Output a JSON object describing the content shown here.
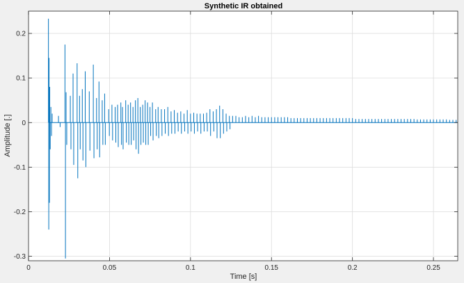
{
  "chart_data": {
    "type": "line",
    "title": "Synthetic IR obtained",
    "xlabel": "Time [s]",
    "ylabel": "Amplitude [.]",
    "xlim": [
      0,
      0.265
    ],
    "ylim": [
      -0.31,
      0.25
    ],
    "x_ticks": [
      0,
      0.05,
      0.1,
      0.15,
      0.2,
      0.25
    ],
    "x_tick_labels": [
      "0",
      "0.05",
      "0.1",
      "0.15",
      "0.2",
      "0.25"
    ],
    "y_ticks": [
      -0.3,
      -0.2,
      -0.1,
      0,
      0.1,
      0.2
    ],
    "y_tick_labels": [
      "-0.3",
      "-0.2",
      "-0.1",
      "0",
      "0.1",
      "0.2"
    ],
    "grid": true,
    "series": [
      {
        "color": "#0072bd",
        "impulses": [
          [
            0.0123,
            0.233
          ],
          [
            0.0125,
            -0.24
          ],
          [
            0.0127,
            0.145
          ],
          [
            0.0129,
            -0.18
          ],
          [
            0.0131,
            0.08
          ],
          [
            0.0134,
            -0.06
          ],
          [
            0.0138,
            0.035
          ],
          [
            0.0142,
            -0.03
          ],
          [
            0.0146,
            0.02
          ],
          [
            0.0185,
            0.015
          ],
          [
            0.0195,
            -0.01
          ],
          [
            0.0225,
            0.175
          ],
          [
            0.0228,
            -0.305
          ],
          [
            0.0232,
            0.068
          ],
          [
            0.0236,
            -0.05
          ],
          [
            0.0258,
            0.06
          ],
          [
            0.0262,
            -0.06
          ],
          [
            0.0275,
            0.11
          ],
          [
            0.0279,
            -0.095
          ],
          [
            0.03,
            0.133
          ],
          [
            0.0304,
            -0.125
          ],
          [
            0.0315,
            0.06
          ],
          [
            0.0319,
            -0.06
          ],
          [
            0.0332,
            0.075
          ],
          [
            0.0336,
            -0.085
          ],
          [
            0.035,
            0.115
          ],
          [
            0.0354,
            -0.1
          ],
          [
            0.0375,
            0.07
          ],
          [
            0.0379,
            -0.063
          ],
          [
            0.04,
            0.13
          ],
          [
            0.0404,
            -0.08
          ],
          [
            0.042,
            0.055
          ],
          [
            0.0424,
            -0.06
          ],
          [
            0.0435,
            0.092
          ],
          [
            0.0439,
            -0.078
          ],
          [
            0.0455,
            0.05
          ],
          [
            0.0459,
            -0.05
          ],
          [
            0.047,
            0.065
          ],
          [
            0.0474,
            -0.05
          ],
          [
            0.0495,
            0.03
          ],
          [
            0.0499,
            -0.03
          ],
          [
            0.0515,
            0.04
          ],
          [
            0.0519,
            -0.04
          ],
          [
            0.0535,
            0.035
          ],
          [
            0.0539,
            -0.045
          ],
          [
            0.055,
            0.04
          ],
          [
            0.0554,
            -0.055
          ],
          [
            0.057,
            0.045
          ],
          [
            0.0574,
            -0.05
          ],
          [
            0.058,
            0.035
          ],
          [
            0.0584,
            -0.06
          ],
          [
            0.06,
            0.05
          ],
          [
            0.0604,
            -0.045
          ],
          [
            0.0615,
            0.04
          ],
          [
            0.0619,
            -0.05
          ],
          [
            0.063,
            0.045
          ],
          [
            0.0634,
            -0.05
          ],
          [
            0.0645,
            0.035
          ],
          [
            0.0649,
            -0.04
          ],
          [
            0.066,
            0.05
          ],
          [
            0.0664,
            -0.06
          ],
          [
            0.0675,
            0.055
          ],
          [
            0.0679,
            -0.07
          ],
          [
            0.069,
            0.035
          ],
          [
            0.0694,
            -0.05
          ],
          [
            0.0705,
            0.04
          ],
          [
            0.0709,
            -0.045
          ],
          [
            0.072,
            0.05
          ],
          [
            0.0724,
            -0.05
          ],
          [
            0.0735,
            0.045
          ],
          [
            0.0739,
            -0.05
          ],
          [
            0.075,
            0.035
          ],
          [
            0.0754,
            -0.03
          ],
          [
            0.0765,
            0.045
          ],
          [
            0.0769,
            -0.04
          ],
          [
            0.0785,
            0.03
          ],
          [
            0.0789,
            -0.03
          ],
          [
            0.08,
            0.035
          ],
          [
            0.0804,
            -0.035
          ],
          [
            0.082,
            0.03
          ],
          [
            0.0824,
            -0.03
          ],
          [
            0.084,
            0.03
          ],
          [
            0.0844,
            -0.025
          ],
          [
            0.086,
            0.035
          ],
          [
            0.0864,
            -0.03
          ],
          [
            0.088,
            0.025
          ],
          [
            0.0884,
            -0.025
          ],
          [
            0.09,
            0.028
          ],
          [
            0.0904,
            -0.025
          ],
          [
            0.092,
            0.022
          ],
          [
            0.0924,
            -0.02
          ],
          [
            0.094,
            0.025
          ],
          [
            0.0944,
            -0.025
          ],
          [
            0.096,
            0.02
          ],
          [
            0.0964,
            -0.02
          ],
          [
            0.098,
            0.028
          ],
          [
            0.0984,
            -0.025
          ],
          [
            0.1,
            0.02
          ],
          [
            0.1004,
            -0.02
          ],
          [
            0.102,
            0.022
          ],
          [
            0.1024,
            -0.025
          ],
          [
            0.104,
            0.02
          ],
          [
            0.1044,
            -0.02
          ],
          [
            0.106,
            0.02
          ],
          [
            0.1064,
            -0.025
          ],
          [
            0.108,
            0.02
          ],
          [
            0.1084,
            -0.02
          ],
          [
            0.11,
            0.022
          ],
          [
            0.1104,
            -0.02
          ],
          [
            0.112,
            0.03
          ],
          [
            0.1124,
            -0.03
          ],
          [
            0.114,
            0.025
          ],
          [
            0.1144,
            -0.02
          ],
          [
            0.116,
            0.03
          ],
          [
            0.1164,
            -0.035
          ],
          [
            0.118,
            0.038
          ],
          [
            0.1184,
            -0.035
          ],
          [
            0.12,
            0.03
          ],
          [
            0.1204,
            -0.025
          ],
          [
            0.122,
            0.02
          ],
          [
            0.1224,
            -0.02
          ],
          [
            0.124,
            0.015
          ],
          [
            0.1244,
            -0.015
          ],
          [
            0.126,
            0.015
          ],
          [
            0.128,
            0.015
          ],
          [
            0.13,
            0.012
          ],
          [
            0.132,
            0.012
          ],
          [
            0.134,
            0.015
          ],
          [
            0.136,
            0.012
          ],
          [
            0.138,
            0.015
          ],
          [
            0.14,
            0.012
          ],
          [
            0.142,
            0.015
          ],
          [
            0.144,
            0.012
          ],
          [
            0.146,
            0.012
          ],
          [
            0.148,
            0.012
          ],
          [
            0.15,
            0.012
          ],
          [
            0.152,
            0.012
          ],
          [
            0.154,
            0.012
          ],
          [
            0.156,
            0.012
          ],
          [
            0.158,
            0.012
          ],
          [
            0.16,
            0.012
          ],
          [
            0.162,
            0.01
          ],
          [
            0.164,
            0.01
          ],
          [
            0.166,
            0.01
          ],
          [
            0.168,
            0.01
          ],
          [
            0.17,
            0.01
          ],
          [
            0.172,
            0.01
          ],
          [
            0.174,
            0.01
          ],
          [
            0.176,
            0.01
          ],
          [
            0.178,
            0.01
          ],
          [
            0.18,
            0.01
          ],
          [
            0.182,
            0.01
          ],
          [
            0.184,
            0.01
          ],
          [
            0.186,
            0.01
          ],
          [
            0.188,
            0.01
          ],
          [
            0.19,
            0.01
          ],
          [
            0.192,
            0.01
          ],
          [
            0.194,
            0.01
          ],
          [
            0.196,
            0.01
          ],
          [
            0.198,
            0.01
          ],
          [
            0.2,
            0.01
          ],
          [
            0.202,
            0.008
          ],
          [
            0.204,
            0.008
          ],
          [
            0.206,
            0.008
          ],
          [
            0.208,
            0.008
          ],
          [
            0.21,
            0.008
          ],
          [
            0.212,
            0.008
          ],
          [
            0.214,
            0.008
          ],
          [
            0.216,
            0.008
          ],
          [
            0.218,
            0.008
          ],
          [
            0.22,
            0.008
          ],
          [
            0.222,
            0.008
          ],
          [
            0.224,
            0.008
          ],
          [
            0.226,
            0.008
          ],
          [
            0.228,
            0.008
          ],
          [
            0.23,
            0.008
          ],
          [
            0.232,
            0.008
          ],
          [
            0.234,
            0.008
          ],
          [
            0.236,
            0.008
          ],
          [
            0.238,
            0.008
          ],
          [
            0.24,
            0.007
          ],
          [
            0.242,
            0.007
          ],
          [
            0.244,
            0.007
          ],
          [
            0.246,
            0.007
          ],
          [
            0.248,
            0.007
          ],
          [
            0.25,
            0.007
          ],
          [
            0.252,
            0.007
          ],
          [
            0.254,
            0.007
          ],
          [
            0.256,
            0.007
          ],
          [
            0.258,
            0.007
          ],
          [
            0.26,
            0.006
          ],
          [
            0.262,
            0.006
          ],
          [
            0.264,
            0.006
          ]
        ]
      }
    ]
  }
}
